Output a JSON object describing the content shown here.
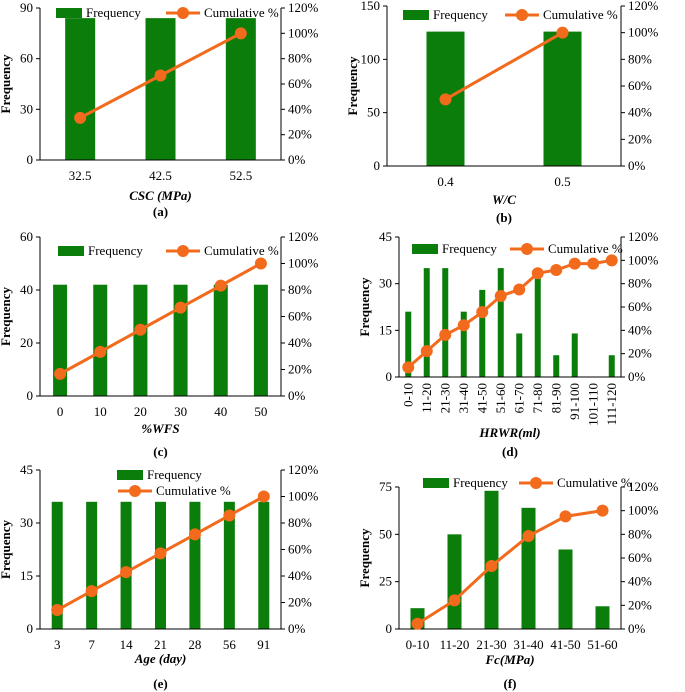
{
  "colors": {
    "bar": "#0b7d0b",
    "line": "#f26b1d",
    "axis": "#000000"
  },
  "legend": {
    "bar_label": "Frequency",
    "line_label": "Cumulative %"
  },
  "chart_data": [
    {
      "panel": "a",
      "caption": "(a)",
      "type": "bar+line",
      "categories": [
        "32.5",
        "42.5",
        "52.5"
      ],
      "series": [
        {
          "name": "Frequency",
          "values": [
            84,
            84,
            84
          ]
        },
        {
          "name": "Cumulative %",
          "values": [
            33.3,
            66.7,
            100
          ]
        }
      ],
      "xlabel": "CSC (MPa)",
      "ylabel": "Frequency",
      "ylim": [
        0,
        90
      ],
      "yticks": [
        "0",
        "30",
        "60",
        "90"
      ],
      "y2lim": [
        0,
        120
      ],
      "y2ticks": [
        "0%",
        "20%",
        "40%",
        "60%",
        "80%",
        "100%",
        "120%"
      ],
      "legend_position": "top"
    },
    {
      "panel": "b",
      "caption": "(b)",
      "type": "bar+line",
      "categories": [
        "0.4",
        "0.5"
      ],
      "series": [
        {
          "name": "Frequency",
          "values": [
            126,
            126
          ]
        },
        {
          "name": "Cumulative %",
          "values": [
            50,
            100
          ]
        }
      ],
      "xlabel": "W/C",
      "ylabel": "Frequency",
      "ylim": [
        0,
        150
      ],
      "yticks": [
        "0",
        "50",
        "100",
        "150"
      ],
      "y2lim": [
        0,
        120
      ],
      "y2ticks": [
        "0%",
        "20%",
        "40%",
        "60%",
        "80%",
        "100%",
        "120%"
      ],
      "legend_position": "top"
    },
    {
      "panel": "c",
      "caption": "(c)",
      "type": "bar+line",
      "categories": [
        "0",
        "10",
        "20",
        "30",
        "40",
        "50"
      ],
      "series": [
        {
          "name": "Frequency",
          "values": [
            42,
            42,
            42,
            42,
            42,
            42
          ]
        },
        {
          "name": "Cumulative %",
          "values": [
            16.7,
            33.3,
            50,
            66.7,
            83.3,
            100
          ]
        }
      ],
      "xlabel": "%WFS",
      "ylabel": "Frequency",
      "ylim": [
        0,
        60
      ],
      "yticks": [
        "0",
        "20",
        "40",
        "60"
      ],
      "y2lim": [
        0,
        120
      ],
      "y2ticks": [
        "0%",
        "20%",
        "40%",
        "60%",
        "80%",
        "100%",
        "120%"
      ],
      "legend_position": "top"
    },
    {
      "panel": "d",
      "caption": "(d)",
      "type": "bar+line",
      "categories": [
        "0-10",
        "11-20",
        "21-30",
        "31-40",
        "41-50",
        "51-60",
        "61-70",
        "71-80",
        "81-90",
        "91-100",
        "101-110",
        "111-120"
      ],
      "series": [
        {
          "name": "Frequency",
          "values": [
            21,
            35,
            35,
            21,
            28,
            35,
            14,
            35,
            7,
            14,
            0,
            7
          ]
        },
        {
          "name": "Cumulative %",
          "values": [
            8.3,
            22.2,
            36.1,
            44.4,
            55.6,
            69.4,
            75,
            88.9,
            91.7,
            97.2,
            97.2,
            100
          ]
        }
      ],
      "xlabel": "HRWR(ml)",
      "ylabel": "Frequency",
      "ylim": [
        0,
        45
      ],
      "yticks": [
        "0",
        "15",
        "30",
        "45"
      ],
      "y2lim": [
        0,
        120
      ],
      "y2ticks": [
        "0%",
        "20%",
        "40%",
        "60%",
        "80%",
        "100%",
        "120%"
      ],
      "legend_position": "top"
    },
    {
      "panel": "e",
      "caption": "(e)",
      "type": "bar+line",
      "categories": [
        "3",
        "7",
        "14",
        "21",
        "28",
        "56",
        "91"
      ],
      "series": [
        {
          "name": "Frequency",
          "values": [
            36,
            36,
            36,
            36,
            36,
            36,
            36
          ]
        },
        {
          "name": "Cumulative %",
          "values": [
            14.3,
            28.6,
            42.9,
            57.1,
            71.4,
            85.7,
            100
          ]
        }
      ],
      "xlabel": "Age (day)",
      "ylabel": "Frequency",
      "ylim": [
        0,
        45
      ],
      "yticks": [
        "0",
        "15",
        "30",
        "45"
      ],
      "y2lim": [
        0,
        120
      ],
      "y2ticks": [
        "0%",
        "20%",
        "40%",
        "60%",
        "80%",
        "100%",
        "120%"
      ],
      "legend_position": "top"
    },
    {
      "panel": "f",
      "caption": "(f)",
      "type": "bar+line",
      "categories": [
        "0-10",
        "11-20",
        "21-30",
        "31-40",
        "41-50",
        "51-60"
      ],
      "series": [
        {
          "name": "Frequency",
          "values": [
            11,
            50,
            73,
            64,
            42,
            12
          ]
        },
        {
          "name": "Cumulative %",
          "values": [
            4.4,
            24.2,
            53.2,
            78.6,
            95.2,
            100
          ]
        }
      ],
      "xlabel": "Fc(MPa)",
      "ylabel": "Frequency",
      "ylim": [
        0,
        75
      ],
      "yticks": [
        "0",
        "25",
        "50",
        "75"
      ],
      "y2lim": [
        0,
        120
      ],
      "y2ticks": [
        "0%",
        "20%",
        "40%",
        "60%",
        "80%",
        "100%",
        "120%"
      ],
      "legend_position": "top"
    }
  ]
}
